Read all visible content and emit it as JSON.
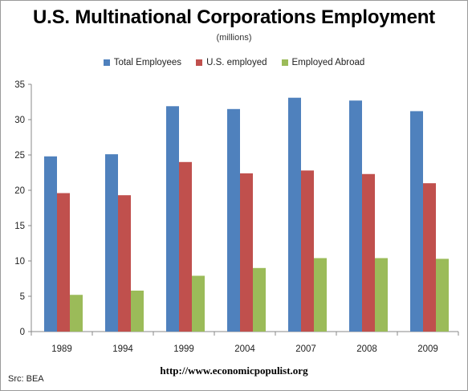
{
  "chart_data": {
    "type": "bar",
    "title": "U.S. Multinational Corporations Employment",
    "subtitle": "(millions)",
    "categories": [
      "1989",
      "1994",
      "1999",
      "2004",
      "2007",
      "2008",
      "2009"
    ],
    "series": [
      {
        "name": "Total Employees",
        "color": "#4f81bd",
        "values": [
          24.8,
          25.1,
          31.9,
          31.5,
          33.1,
          32.7,
          31.2
        ]
      },
      {
        "name": "U.S. employed",
        "color": "#c0504d",
        "values": [
          19.6,
          19.3,
          24.0,
          22.4,
          22.8,
          22.3,
          21.0
        ]
      },
      {
        "name": "Employed Abroad",
        "color": "#9bbb59",
        "values": [
          5.2,
          5.8,
          7.9,
          9.0,
          10.4,
          10.4,
          10.3
        ]
      }
    ],
    "ylim": [
      0,
      35
    ],
    "yticks": [
      0,
      5,
      10,
      15,
      20,
      25,
      30,
      35
    ],
    "grid": false,
    "legend": "top-center"
  },
  "footer": {
    "url": "http://www.economicpopulist.org",
    "source": "Src:  BEA"
  }
}
